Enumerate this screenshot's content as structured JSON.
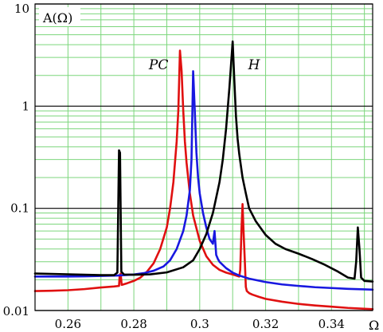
{
  "chart_data": {
    "type": "line",
    "title": "",
    "ylabel": "A(Ω)",
    "xlabel": "Ω",
    "xscale": "linear",
    "yscale": "log",
    "xlim": [
      0.25,
      0.3525
    ],
    "ylim": [
      0.01,
      10
    ],
    "x_ticks": [
      0.26,
      0.28,
      0.3,
      0.32,
      0.34
    ],
    "x_tick_labels": [
      "0.26",
      "0.28",
      "0.3",
      "0.32",
      "0.34"
    ],
    "y_ticks": [
      0.01,
      0.1,
      1,
      10
    ],
    "y_tick_labels": [
      "0.01",
      "0.1",
      "1",
      "10"
    ],
    "grid": true,
    "grid_color_minor": "#7cd67c",
    "grid_color_major": "#000000",
    "annotations": [
      {
        "text": "PC",
        "x": 0.2875,
        "y": 2.3
      },
      {
        "text": "H",
        "x": 0.3165,
        "y": 2.3
      }
    ],
    "series": [
      {
        "name": "",
        "color": "#e01010",
        "x": [
          0.25,
          0.255,
          0.26,
          0.265,
          0.27,
          0.274,
          0.2755,
          0.2757,
          0.276,
          0.2763,
          0.278,
          0.28,
          0.282,
          0.284,
          0.286,
          0.288,
          0.29,
          0.291,
          0.292,
          0.293,
          0.2935,
          0.294,
          0.2945,
          0.295,
          0.2955,
          0.296,
          0.297,
          0.298,
          0.3,
          0.302,
          0.304,
          0.306,
          0.308,
          0.31,
          0.311,
          0.312,
          0.3123,
          0.3127,
          0.313,
          0.3133,
          0.3137,
          0.314,
          0.3143,
          0.315,
          0.316,
          0.318,
          0.32,
          0.325,
          0.33,
          0.335,
          0.34,
          0.345,
          0.35,
          0.3525
        ],
        "y": [
          0.0155,
          0.0156,
          0.0158,
          0.0162,
          0.0168,
          0.0172,
          0.0174,
          0.022,
          0.023,
          0.0178,
          0.0185,
          0.0195,
          0.021,
          0.024,
          0.029,
          0.04,
          0.065,
          0.1,
          0.18,
          0.45,
          0.9,
          3.5,
          2.2,
          0.9,
          0.45,
          0.28,
          0.14,
          0.085,
          0.048,
          0.034,
          0.028,
          0.025,
          0.0235,
          0.0225,
          0.022,
          0.0215,
          0.025,
          0.065,
          0.11,
          0.06,
          0.03,
          0.017,
          0.0155,
          0.0148,
          0.0143,
          0.0136,
          0.013,
          0.0122,
          0.0116,
          0.0112,
          0.0109,
          0.0106,
          0.0104,
          0.0103
        ]
      },
      {
        "name": "",
        "color": "#1818e0",
        "x": [
          0.25,
          0.255,
          0.26,
          0.265,
          0.27,
          0.275,
          0.28,
          0.283,
          0.286,
          0.289,
          0.291,
          0.293,
          0.295,
          0.296,
          0.297,
          0.2975,
          0.298,
          0.2985,
          0.299,
          0.2995,
          0.3,
          0.301,
          0.302,
          0.303,
          0.304,
          0.3045,
          0.305,
          0.3055,
          0.306,
          0.308,
          0.31,
          0.312,
          0.315,
          0.32,
          0.325,
          0.33,
          0.335,
          0.34,
          0.345,
          0.35,
          0.3525
        ],
        "y": [
          0.0215,
          0.0215,
          0.0215,
          0.0216,
          0.0218,
          0.022,
          0.0225,
          0.0232,
          0.0245,
          0.027,
          0.031,
          0.04,
          0.06,
          0.085,
          0.15,
          0.3,
          2.2,
          0.9,
          0.35,
          0.2,
          0.14,
          0.09,
          0.065,
          0.05,
          0.045,
          0.06,
          0.035,
          0.032,
          0.03,
          0.026,
          0.0235,
          0.022,
          0.0205,
          0.019,
          0.018,
          0.0174,
          0.0169,
          0.0166,
          0.0163,
          0.0161,
          0.016
        ]
      },
      {
        "name": "",
        "color": "#000000",
        "x": [
          0.25,
          0.255,
          0.26,
          0.265,
          0.27,
          0.274,
          0.275,
          0.2755,
          0.2758,
          0.2762,
          0.277,
          0.28,
          0.285,
          0.29,
          0.295,
          0.298,
          0.3,
          0.302,
          0.304,
          0.306,
          0.307,
          0.308,
          0.309,
          0.31,
          0.3105,
          0.311,
          0.3115,
          0.312,
          0.313,
          0.314,
          0.315,
          0.317,
          0.32,
          0.323,
          0.326,
          0.33,
          0.334,
          0.338,
          0.342,
          0.345,
          0.347,
          0.3475,
          0.348,
          0.3485,
          0.349,
          0.35,
          0.3525
        ],
        "y": [
          0.023,
          0.0228,
          0.0226,
          0.0224,
          0.0222,
          0.0222,
          0.0235,
          0.37,
          0.35,
          0.024,
          0.0225,
          0.0224,
          0.0226,
          0.0236,
          0.0265,
          0.031,
          0.04,
          0.056,
          0.09,
          0.18,
          0.3,
          0.6,
          1.5,
          4.3,
          1.8,
          0.8,
          0.48,
          0.34,
          0.2,
          0.14,
          0.1,
          0.075,
          0.055,
          0.045,
          0.04,
          0.036,
          0.032,
          0.028,
          0.024,
          0.021,
          0.0205,
          0.03,
          0.065,
          0.04,
          0.021,
          0.0195,
          0.0192
        ]
      }
    ]
  }
}
